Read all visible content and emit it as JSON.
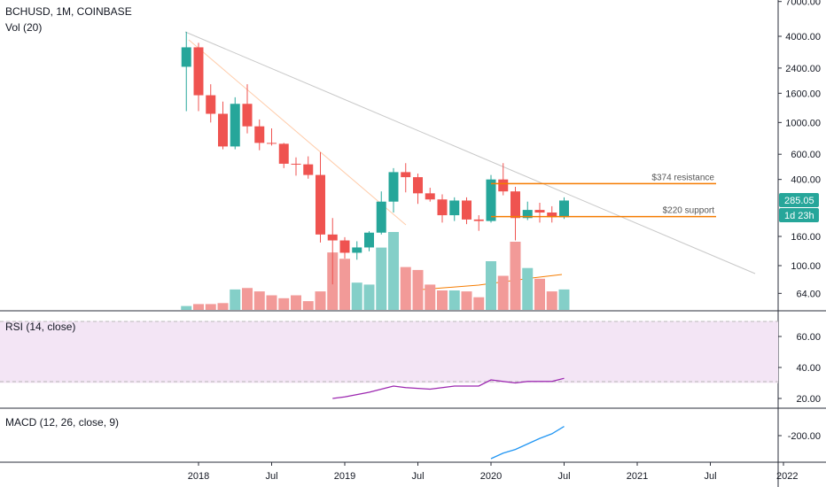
{
  "chart_data": {
    "type": "candlestick",
    "symbol_line": "BCHUSD, 1M, COINBASE",
    "volume_label": "Vol (20)",
    "price_axis": {
      "scale": "log",
      "ticks": [
        "7000.00",
        "4000.00",
        "2400.00",
        "1600.00",
        "1000.00",
        "600.00",
        "400.00",
        "160.00",
        "100.00",
        "64.00"
      ]
    },
    "time_axis": {
      "ticks": [
        "2018",
        "Jul",
        "2019",
        "Jul",
        "2020",
        "Jul",
        "2021",
        "Jul",
        "2022"
      ]
    },
    "last_price": "285.05",
    "countdown": "1d 23h",
    "annotations": {
      "resistance_label": "$374 resistance",
      "support_label": "$220 support",
      "resistance_value": 374,
      "support_value": 220
    },
    "candles": [
      {
        "date": "2017-12",
        "open": 2450,
        "high": 4300,
        "low": 1200,
        "close": 3350,
        "volume": 8
      },
      {
        "date": "2018-01",
        "open": 3350,
        "high": 3600,
        "low": 1200,
        "close": 1550,
        "volume": 12
      },
      {
        "date": "2018-02",
        "open": 1550,
        "high": 1850,
        "low": 1000,
        "close": 1150,
        "volume": 12
      },
      {
        "date": "2018-03",
        "open": 1150,
        "high": 1400,
        "low": 650,
        "close": 680,
        "volume": 14
      },
      {
        "date": "2018-04",
        "open": 680,
        "high": 1500,
        "low": 650,
        "close": 1350,
        "volume": 42
      },
      {
        "date": "2018-05",
        "open": 1350,
        "high": 1850,
        "low": 840,
        "close": 940,
        "volume": 45
      },
      {
        "date": "2018-06",
        "open": 940,
        "high": 1050,
        "low": 640,
        "close": 720,
        "volume": 38
      },
      {
        "date": "2018-07",
        "open": 720,
        "high": 910,
        "low": 690,
        "close": 710,
        "volume": 30
      },
      {
        "date": "2018-08",
        "open": 710,
        "high": 720,
        "low": 480,
        "close": 515,
        "volume": 24
      },
      {
        "date": "2018-09",
        "open": 515,
        "high": 570,
        "low": 425,
        "close": 510,
        "volume": 30
      },
      {
        "date": "2018-10",
        "open": 510,
        "high": 580,
        "low": 405,
        "close": 430,
        "volume": 18
      },
      {
        "date": "2018-11",
        "open": 430,
        "high": 620,
        "low": 145,
        "close": 165,
        "volume": 38
      },
      {
        "date": "2018-12",
        "open": 165,
        "high": 215,
        "low": 74,
        "close": 150,
        "volume": 118
      },
      {
        "date": "2019-01",
        "open": 150,
        "high": 158,
        "low": 112,
        "close": 123,
        "volume": 105
      },
      {
        "date": "2019-02",
        "open": 123,
        "high": 148,
        "low": 110,
        "close": 134,
        "volume": 56
      },
      {
        "date": "2019-03",
        "open": 134,
        "high": 174,
        "low": 126,
        "close": 170,
        "volume": 52
      },
      {
        "date": "2019-04",
        "open": 170,
        "high": 330,
        "low": 165,
        "close": 280,
        "volume": 128
      },
      {
        "date": "2019-05",
        "open": 280,
        "high": 480,
        "low": 235,
        "close": 450,
        "volume": 160
      },
      {
        "date": "2019-06",
        "open": 450,
        "high": 520,
        "low": 325,
        "close": 415,
        "volume": 88
      },
      {
        "date": "2019-07",
        "open": 415,
        "high": 440,
        "low": 270,
        "close": 320,
        "volume": 82
      },
      {
        "date": "2019-08",
        "open": 320,
        "high": 350,
        "low": 280,
        "close": 290,
        "volume": 52
      },
      {
        "date": "2019-09",
        "open": 290,
        "high": 315,
        "low": 200,
        "close": 225,
        "volume": 40
      },
      {
        "date": "2019-10",
        "open": 225,
        "high": 300,
        "low": 205,
        "close": 285,
        "volume": 40
      },
      {
        "date": "2019-11",
        "open": 285,
        "high": 300,
        "low": 195,
        "close": 210,
        "volume": 38
      },
      {
        "date": "2019-12",
        "open": 210,
        "high": 225,
        "low": 175,
        "close": 205,
        "volume": 26
      },
      {
        "date": "2020-01",
        "open": 205,
        "high": 430,
        "low": 200,
        "close": 400,
        "volume": 100
      },
      {
        "date": "2020-02",
        "open": 400,
        "high": 520,
        "low": 310,
        "close": 330,
        "volume": 70
      },
      {
        "date": "2020-03",
        "open": 330,
        "high": 355,
        "low": 150,
        "close": 215,
        "volume": 140
      },
      {
        "date": "2020-04",
        "open": 215,
        "high": 280,
        "low": 208,
        "close": 245,
        "volume": 86
      },
      {
        "date": "2020-05",
        "open": 245,
        "high": 275,
        "low": 200,
        "close": 235,
        "volume": 64
      },
      {
        "date": "2020-06",
        "open": 235,
        "high": 260,
        "low": 200,
        "close": 218,
        "volume": 38
      },
      {
        "date": "2020-07",
        "open": 218,
        "high": 300,
        "low": 212,
        "close": 285.05,
        "volume": 42
      }
    ],
    "rsi": {
      "label": "RSI (14, close)",
      "ticks": [
        "60.00",
        "40.00",
        "20.00"
      ],
      "bands": [
        70,
        30
      ],
      "values": [
        {
          "date": "2018-12",
          "v": 20
        },
        {
          "date": "2019-01",
          "v": 21
        },
        {
          "date": "2019-03",
          "v": 24
        },
        {
          "date": "2019-05",
          "v": 28
        },
        {
          "date": "2019-06",
          "v": 27
        },
        {
          "date": "2019-08",
          "v": 26
        },
        {
          "date": "2019-10",
          "v": 28
        },
        {
          "date": "2019-12",
          "v": 28
        },
        {
          "date": "2020-01",
          "v": 32
        },
        {
          "date": "2020-03",
          "v": 30
        },
        {
          "date": "2020-04",
          "v": 31
        },
        {
          "date": "2020-06",
          "v": 31
        },
        {
          "date": "2020-07",
          "v": 33
        }
      ]
    },
    "macd": {
      "label": "MACD (12, 26, close, 9)",
      "ticks": [
        "-200.00"
      ],
      "values": [
        {
          "date": "2020-01",
          "v": -325
        },
        {
          "date": "2020-02",
          "v": -295
        },
        {
          "date": "2020-03",
          "v": -275
        },
        {
          "date": "2020-04",
          "v": -245
        },
        {
          "date": "2020-05",
          "v": -215
        },
        {
          "date": "2020-06",
          "v": -190
        },
        {
          "date": "2020-07",
          "v": -150
        }
      ]
    },
    "colors": {
      "up": "#26a69a",
      "down": "#ef5350",
      "up_vol": "#84cfc8",
      "down_vol": "#f29a98",
      "level_line": "#f57c00",
      "rsi_line": "#9c27b0",
      "rsi_band": "#f3e5f5",
      "macd_line": "#2196f3",
      "badge_green": "#26a69a"
    }
  }
}
